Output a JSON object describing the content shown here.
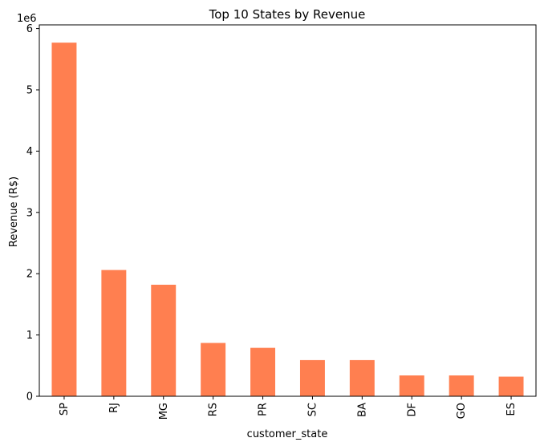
{
  "chart_data": {
    "type": "bar",
    "title": "Top 10 States by Revenue",
    "xlabel": "customer_state",
    "ylabel": "Revenue (R$)",
    "y_offset_label": "1e6",
    "categories": [
      "SP",
      "RJ",
      "MG",
      "RS",
      "PR",
      "SC",
      "BA",
      "DF",
      "GO",
      "ES"
    ],
    "values": [
      5770000,
      2060000,
      1820000,
      870000,
      790000,
      590000,
      590000,
      340000,
      340000,
      320000
    ],
    "ylim": [
      0,
      6060000
    ],
    "y_ticks": [
      0,
      1000000,
      2000000,
      3000000,
      4000000,
      5000000,
      6000000
    ],
    "y_tick_labels": [
      "0",
      "1",
      "2",
      "3",
      "4",
      "5",
      "6"
    ],
    "bar_color": "#ff7f50",
    "grid": false,
    "x_tick_rotation": "vertical"
  }
}
